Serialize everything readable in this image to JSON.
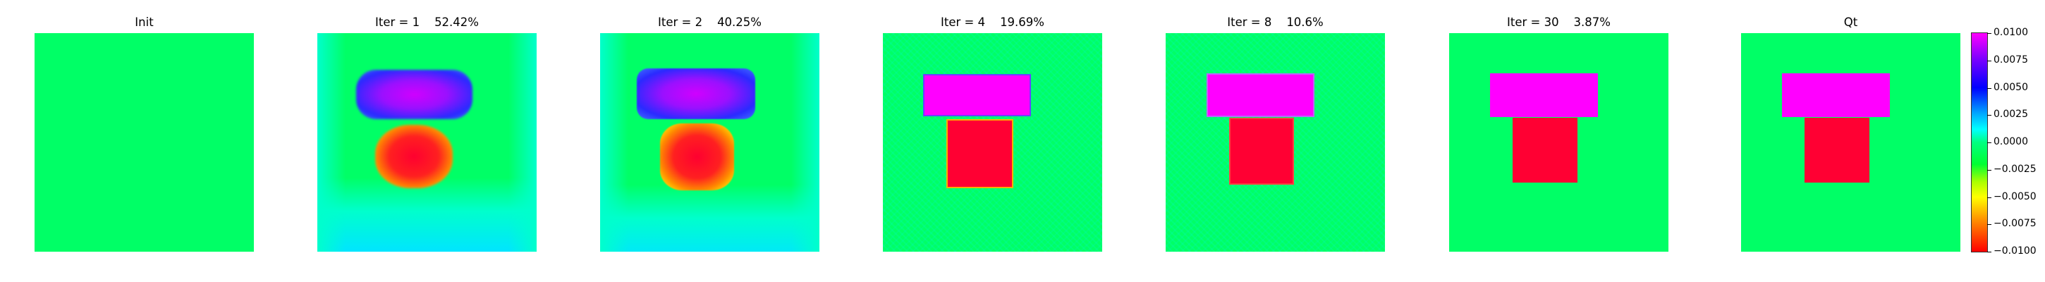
{
  "colors": {
    "background": "#00FF66",
    "pos_high": "#FF00FF",
    "pos_mid": "#2020FF",
    "neg_high": "#FF0033",
    "neg_mid": "#FFE000",
    "neutral_alt": "#00FFCC"
  },
  "chart_data": [
    {
      "type": "heatmap",
      "title": "Init",
      "description": "uniform field at 0",
      "value_range": [
        -0.01,
        0.01
      ]
    },
    {
      "type": "heatmap",
      "title": "Iter = 1    52.42%",
      "iteration": 1,
      "error_percent": 52.42,
      "description": "blurred reconstruction: top block ~+0.007, bottom block ~-0.009"
    },
    {
      "type": "heatmap",
      "title": "Iter = 2    40.25%",
      "iteration": 2,
      "error_percent": 40.25,
      "description": "sharper reconstruction: top block ~+0.008, bottom block ~-0.0095"
    },
    {
      "type": "heatmap",
      "title": "Iter = 4    19.69%",
      "iteration": 4,
      "error_percent": 19.69,
      "description": "top block ~+0.009, bottom block ~-0.01"
    },
    {
      "type": "heatmap",
      "title": "Iter = 8    10.6%",
      "iteration": 8,
      "error_percent": 10.6,
      "description": "top block +0.01, bottom block -0.01"
    },
    {
      "type": "heatmap",
      "title": "Iter = 30    3.87%",
      "iteration": 30,
      "error_percent": 3.87,
      "description": "nearly exact: top block +0.01, bottom block -0.01"
    },
    {
      "type": "heatmap",
      "title": "Qt",
      "description": "true model: top block +0.01, bottom block -0.01, background 0"
    }
  ],
  "colorbar": {
    "min": -0.01,
    "max": 0.01,
    "ticks": [
      "0.0100",
      "0.0075",
      "0.0050",
      "0.0025",
      "0.0000",
      "−0.0025",
      "−0.0050",
      "−0.0075",
      "−0.0100"
    ]
  }
}
